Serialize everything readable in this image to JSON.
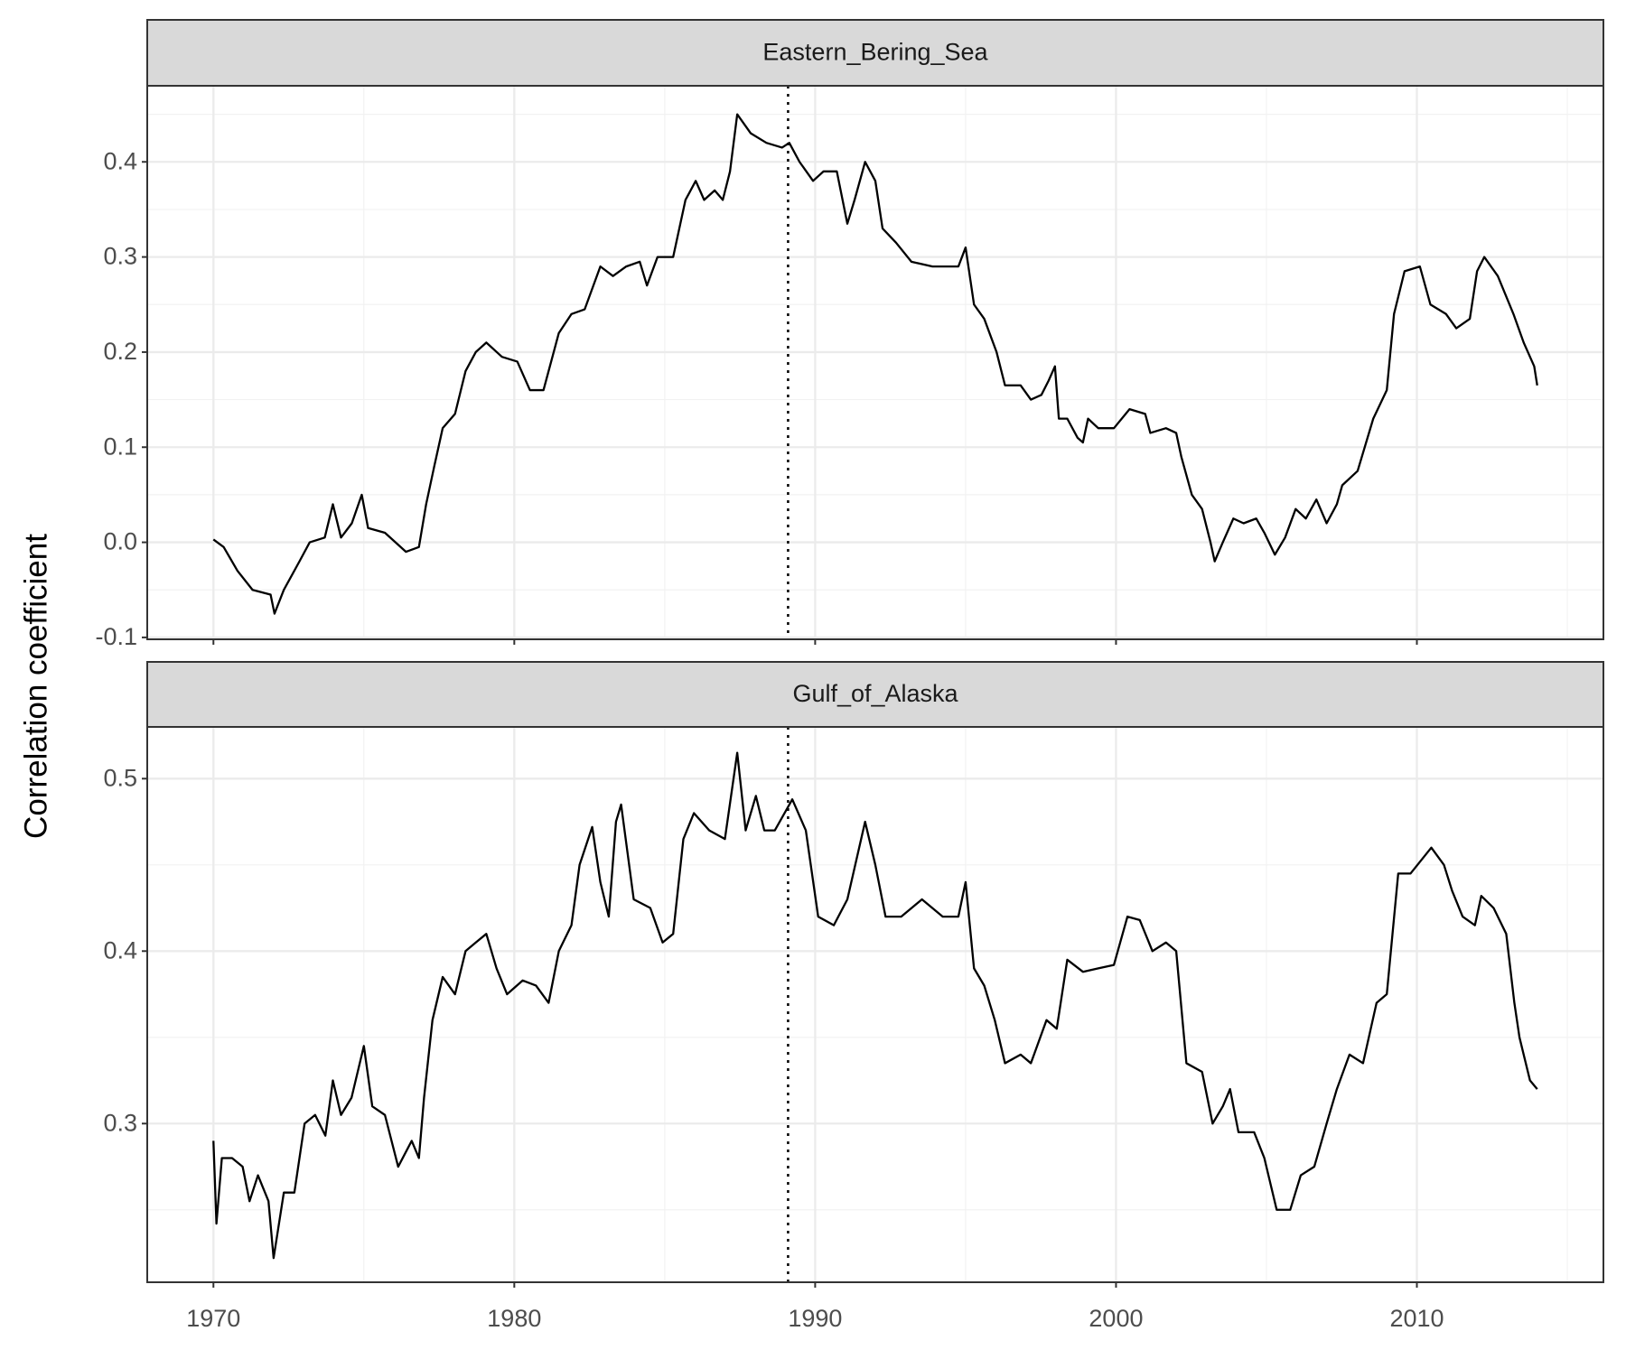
{
  "ylabel": "Correlation coefficient",
  "chart_data": [
    {
      "type": "line",
      "title": "Eastern_Bering_Sea",
      "color": "#000000",
      "grid": true,
      "x_tick_labels": false,
      "vline": 1989.1,
      "xlim": [
        1967.8,
        2016.2
      ],
      "xticks": [
        1970,
        1980,
        1990,
        2000,
        2010
      ],
      "ylim": [
        -0.102,
        0.48
      ],
      "yticks": [
        -0.1,
        {
          "value": 0,
          "label": "0.0"
        },
        0.1,
        0.2,
        0.3,
        0.4
      ],
      "x": [
        1970.0,
        1970.34,
        1970.8,
        1971.3,
        1971.9,
        1972.03,
        1972.34,
        1972.86,
        1973.2,
        1973.7,
        1973.97,
        1974.24,
        1974.6,
        1974.93,
        1975.14,
        1975.7,
        1976.4,
        1976.83,
        1977.07,
        1977.34,
        1977.62,
        1978.03,
        1978.38,
        1978.72,
        1979.07,
        1979.59,
        1980.1,
        1980.52,
        1980.97,
        1981.48,
        1981.9,
        1982.34,
        1982.86,
        1983.28,
        1983.72,
        1984.17,
        1984.41,
        1984.76,
        1985.28,
        1985.69,
        1986.03,
        1986.31,
        1986.66,
        1986.93,
        1987.17,
        1987.41,
        1987.86,
        1988.38,
        1988.9,
        1989.14,
        1989.48,
        1989.93,
        1990.28,
        1990.72,
        1991.07,
        1991.31,
        1991.66,
        1992.0,
        1992.24,
        1992.69,
        1993.2,
        1993.9,
        1994.41,
        1994.76,
        1995.0,
        1995.28,
        1995.62,
        1996.03,
        1996.31,
        1996.83,
        1997.17,
        1997.52,
        1997.76,
        1997.97,
        1998.1,
        1998.38,
        1998.72,
        1998.9,
        1999.07,
        1999.41,
        1999.93,
        2000.45,
        2000.97,
        2001.14,
        2001.66,
        2002.0,
        2002.17,
        2002.52,
        2002.86,
        2003.14,
        2003.28,
        2003.55,
        2003.9,
        2004.24,
        2004.66,
        2004.93,
        2005.28,
        2005.62,
        2005.97,
        2006.31,
        2006.66,
        2007.0,
        2007.34,
        2007.52,
        2008.03,
        2008.55,
        2009.0,
        2009.24,
        2009.59,
        2010.1,
        2010.45,
        2010.97,
        2011.31,
        2011.76,
        2012.0,
        2012.24,
        2012.69,
        2013.21,
        2013.55,
        2013.9,
        2014.0
      ],
      "values": [
        0.003,
        -0.005,
        -0.03,
        -0.05,
        -0.055,
        -0.075,
        -0.05,
        -0.02,
        0.0,
        0.005,
        0.04,
        0.005,
        0.02,
        0.05,
        0.015,
        0.01,
        -0.01,
        -0.005,
        0.04,
        0.08,
        0.12,
        0.135,
        0.18,
        0.2,
        0.21,
        0.195,
        0.19,
        0.16,
        0.16,
        0.22,
        0.24,
        0.245,
        0.29,
        0.28,
        0.29,
        0.295,
        0.27,
        0.3,
        0.3,
        0.36,
        0.38,
        0.36,
        0.37,
        0.36,
        0.39,
        0.45,
        0.43,
        0.42,
        0.415,
        0.42,
        0.4,
        0.38,
        0.39,
        0.39,
        0.335,
        0.36,
        0.4,
        0.38,
        0.33,
        0.315,
        0.295,
        0.29,
        0.29,
        0.29,
        0.31,
        0.25,
        0.235,
        0.2,
        0.165,
        0.165,
        0.15,
        0.155,
        0.17,
        0.185,
        0.13,
        0.13,
        0.11,
        0.105,
        0.13,
        0.12,
        0.12,
        0.14,
        0.135,
        0.115,
        0.12,
        0.115,
        0.09,
        0.05,
        0.035,
        0.0,
        -0.02,
        0.0,
        0.025,
        0.02,
        0.025,
        0.01,
        -0.013,
        0.005,
        0.035,
        0.025,
        0.045,
        0.02,
        0.04,
        0.06,
        0.075,
        0.13,
        0.16,
        0.24,
        0.285,
        0.29,
        0.25,
        0.24,
        0.225,
        0.235,
        0.285,
        0.3,
        0.28,
        0.24,
        0.21,
        0.185,
        0.165
      ]
    },
    {
      "type": "line",
      "title": "Gulf_of_Alaska",
      "color": "#000000",
      "grid": true,
      "x_tick_labels": true,
      "vline": 1989.1,
      "xlim": [
        1967.8,
        2016.2
      ],
      "xticks": [
        1970,
        1980,
        1990,
        2000,
        2010
      ],
      "ylim": [
        0.208,
        0.53
      ],
      "yticks": [
        0.3,
        0.4,
        0.5
      ],
      "x": [
        1970.0,
        1970.1,
        1970.28,
        1970.62,
        1970.97,
        1971.2,
        1971.48,
        1971.83,
        1972.0,
        1972.34,
        1972.69,
        1973.03,
        1973.38,
        1973.72,
        1973.97,
        1974.24,
        1974.59,
        1975.0,
        1975.28,
        1975.7,
        1976.14,
        1976.59,
        1976.83,
        1977.0,
        1977.28,
        1977.62,
        1978.03,
        1978.38,
        1978.72,
        1979.07,
        1979.41,
        1979.76,
        1980.28,
        1980.72,
        1981.14,
        1981.48,
        1981.9,
        1982.17,
        1982.59,
        1982.86,
        1983.14,
        1983.38,
        1983.55,
        1983.97,
        1984.52,
        1984.93,
        1985.28,
        1985.62,
        1985.97,
        1986.48,
        1987.0,
        1987.41,
        1987.69,
        1988.03,
        1988.31,
        1988.66,
        1989.24,
        1989.69,
        1990.1,
        1990.62,
        1991.07,
        1991.66,
        1992.0,
        1992.34,
        1992.86,
        1993.55,
        1994.24,
        1994.76,
        1995.0,
        1995.28,
        1995.62,
        1995.97,
        1996.31,
        1996.83,
        1997.17,
        1997.69,
        1998.03,
        1998.38,
        1998.9,
        1999.41,
        1999.93,
        2000.38,
        2000.79,
        2001.21,
        2001.66,
        2002.0,
        2002.34,
        2002.86,
        2003.21,
        2003.55,
        2003.79,
        2004.07,
        2004.59,
        2004.93,
        2005.34,
        2005.79,
        2006.14,
        2006.59,
        2007.0,
        2007.34,
        2007.76,
        2008.21,
        2008.66,
        2009.0,
        2009.38,
        2009.79,
        2010.48,
        2010.9,
        2011.17,
        2011.52,
        2011.93,
        2012.14,
        2012.55,
        2012.97,
        2013.24,
        2013.41,
        2013.76,
        2014.0
      ],
      "values": [
        0.29,
        0.242,
        0.28,
        0.28,
        0.275,
        0.255,
        0.27,
        0.255,
        0.222,
        0.26,
        0.26,
        0.3,
        0.305,
        0.293,
        0.325,
        0.305,
        0.315,
        0.345,
        0.31,
        0.305,
        0.275,
        0.29,
        0.28,
        0.315,
        0.36,
        0.385,
        0.375,
        0.4,
        0.405,
        0.41,
        0.39,
        0.375,
        0.383,
        0.38,
        0.37,
        0.4,
        0.415,
        0.45,
        0.472,
        0.44,
        0.42,
        0.475,
        0.485,
        0.43,
        0.425,
        0.405,
        0.41,
        0.465,
        0.48,
        0.47,
        0.465,
        0.515,
        0.47,
        0.49,
        0.47,
        0.47,
        0.488,
        0.47,
        0.42,
        0.415,
        0.43,
        0.475,
        0.45,
        0.42,
        0.42,
        0.43,
        0.42,
        0.42,
        0.44,
        0.39,
        0.38,
        0.36,
        0.335,
        0.34,
        0.335,
        0.36,
        0.355,
        0.395,
        0.388,
        0.39,
        0.392,
        0.42,
        0.418,
        0.4,
        0.405,
        0.4,
        0.335,
        0.33,
        0.3,
        0.31,
        0.32,
        0.295,
        0.295,
        0.28,
        0.25,
        0.25,
        0.27,
        0.275,
        0.3,
        0.32,
        0.34,
        0.335,
        0.37,
        0.375,
        0.445,
        0.445,
        0.46,
        0.45,
        0.435,
        0.42,
        0.415,
        0.432,
        0.425,
        0.41,
        0.37,
        0.35,
        0.325,
        0.32
      ]
    }
  ]
}
